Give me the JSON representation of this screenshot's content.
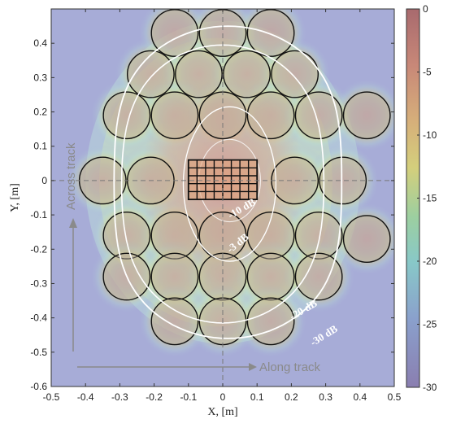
{
  "chart_data": {
    "type": "heatmap",
    "xlabel": "X, [m]",
    "ylabel": "Y, [m]",
    "xlim": [
      -0.5,
      0.5
    ],
    "ylim": [
      -0.6,
      0.5
    ],
    "xticks": [
      -0.5,
      -0.4,
      -0.3,
      -0.2,
      -0.1,
      0,
      0.1,
      0.2,
      0.3,
      0.4,
      0.5
    ],
    "yticks": [
      -0.6,
      -0.5,
      -0.4,
      -0.3,
      -0.2,
      -0.1,
      0,
      0.1,
      0.2,
      0.3,
      0.4
    ],
    "xtick_labels": [
      "-0.5",
      "-0.4",
      "-0.3",
      "-0.2",
      "-0.1",
      "0",
      "0.1",
      "0.2",
      "0.3",
      "0.4",
      "0.5"
    ],
    "ytick_labels": [
      "-0.6",
      "-0.5",
      "-0.4",
      "-0.3",
      "-0.2",
      "-0.1",
      "0",
      "0.1",
      "0.2",
      "0.3",
      "0.4"
    ],
    "colorbar": {
      "range": [
        -30,
        0
      ],
      "ticks": [
        0,
        -5,
        -10,
        -15,
        -20,
        -25,
        -30
      ],
      "tick_labels": [
        "0",
        "-5",
        "-10",
        "-15",
        "-20",
        "-25",
        "-30"
      ]
    },
    "contour_labels": [
      {
        "text": "-3 dB",
        "x": 0.05,
        "y": -0.19,
        "rotate": -38
      },
      {
        "text": "-20 dB",
        "x": 0.24,
        "y": -0.385,
        "rotate": -30
      },
      {
        "text": "-30 dB",
        "x": 0.3,
        "y": -0.46,
        "rotate": -32
      },
      {
        "text": "-10 dB",
        "x": 0.06,
        "y": -0.09,
        "rotate": -30
      }
    ],
    "element_circles": {
      "radius": 0.068,
      "centers": [
        [
          -0.14,
          0.43
        ],
        [
          0.0,
          0.43
        ],
        [
          0.14,
          0.43
        ],
        [
          -0.21,
          0.31
        ],
        [
          -0.07,
          0.31
        ],
        [
          0.07,
          0.31
        ],
        [
          0.21,
          0.31
        ],
        [
          -0.28,
          0.19
        ],
        [
          -0.14,
          0.19
        ],
        [
          0.0,
          0.19
        ],
        [
          0.14,
          0.19
        ],
        [
          0.28,
          0.19
        ],
        [
          0.42,
          0.19
        ],
        [
          -0.35,
          0.0
        ],
        [
          -0.21,
          0.0
        ],
        [
          0.21,
          0.0
        ],
        [
          0.35,
          0.0
        ],
        [
          -0.28,
          -0.16
        ],
        [
          -0.14,
          -0.16
        ],
        [
          0.0,
          -0.16
        ],
        [
          0.14,
          -0.16
        ],
        [
          0.28,
          -0.16
        ],
        [
          0.42,
          -0.17
        ],
        [
          -0.28,
          -0.28
        ],
        [
          -0.14,
          -0.28
        ],
        [
          0.0,
          -0.28
        ],
        [
          0.14,
          -0.28
        ],
        [
          0.28,
          -0.28
        ],
        [
          -0.14,
          -0.41
        ],
        [
          0.0,
          -0.41
        ],
        [
          0.14,
          -0.41
        ]
      ]
    },
    "center_grid": {
      "x_range": [
        -0.1,
        0.1
      ],
      "y_range": [
        -0.055,
        0.06
      ],
      "columns": 8,
      "rows": 5
    },
    "annotations": {
      "along_track": "Along track",
      "across_track": "Across track"
    }
  }
}
